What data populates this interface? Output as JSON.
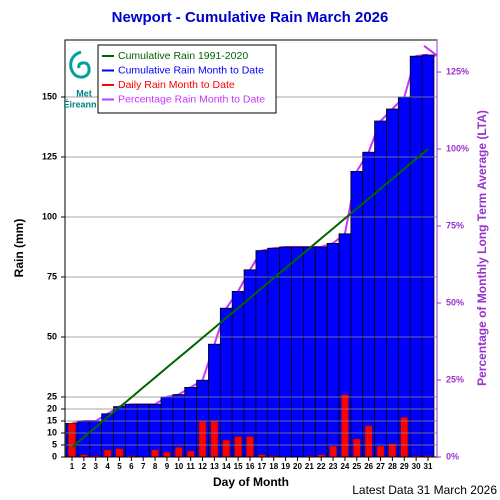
{
  "chart_data": {
    "type": "bar",
    "title": "Newport - Cumulative Rain March   2026",
    "x_label": "Day of Month",
    "y_label": "Rain (mm)",
    "y2_label": "Percentage  of Monthly Long Term Average (LTA)",
    "footer": "Latest Data 31 March 2026",
    "logo_text": [
      "Met",
      "Éireann"
    ],
    "categories": [
      "1",
      "2",
      "3",
      "4",
      "5",
      "6",
      "7",
      "8",
      "9",
      "10",
      "11",
      "12",
      "13",
      "14",
      "15",
      "16",
      "17",
      "18",
      "19",
      "20",
      "21",
      "22",
      "23",
      "24",
      "25",
      "26",
      "27",
      "28",
      "29",
      "30",
      "31"
    ],
    "series": [
      {
        "name": "Cumulative Rain 1991-2020",
        "color": "#006400",
        "kind": "line",
        "values": [
          4.1,
          8.3,
          12.4,
          16.6,
          20.7,
          24.8,
          29.0,
          33.1,
          37.3,
          41.4,
          45.5,
          49.7,
          53.8,
          58.0,
          62.1,
          66.2,
          70.4,
          74.5,
          78.7,
          82.8,
          86.9,
          91.1,
          95.2,
          99.4,
          103.5,
          107.6,
          111.8,
          115.9,
          120.1,
          124.2,
          128.3
        ]
      },
      {
        "name": "Cumulative Rain Month to Date",
        "color": "#0000ff",
        "kind": "bar",
        "values": [
          14,
          15,
          15,
          18,
          21,
          22,
          22,
          22,
          25,
          26,
          29,
          32,
          47,
          62,
          69,
          78,
          86,
          87,
          87.5,
          87.5,
          87.5,
          87.5,
          89,
          93,
          119,
          127,
          140,
          145,
          150,
          167,
          167.5
        ]
      },
      {
        "name": "Daily Rain Month to Date",
        "color": "#ff0000",
        "kind": "narrowbar",
        "values": [
          14,
          1,
          0.5,
          3,
          3.5,
          0.5,
          0,
          3,
          2,
          4,
          2.5,
          15,
          15,
          7,
          8.5,
          8.5,
          1,
          0.5,
          0,
          0,
          0.5,
          1,
          4.5,
          26,
          7.5,
          13,
          4.5,
          5.5,
          16.5,
          0.5,
          0.5
        ]
      },
      {
        "name": "Percentage Rain Month to Date",
        "color": "#cc33ff",
        "kind": "line",
        "axis": "y2",
        "values": [
          10.9,
          11.7,
          11.7,
          14.0,
          16.4,
          17.1,
          17.1,
          17.1,
          19.5,
          20.3,
          22.6,
          24.9,
          36.6,
          48.3,
          53.8,
          60.8,
          67.0,
          67.8,
          68.2,
          68.2,
          68.2,
          68.2,
          69.4,
          72.5,
          92.8,
          99.0,
          109.1,
          113.0,
          116.9,
          130.2,
          130.6
        ]
      }
    ],
    "ylim": [
      0,
      173.75
    ],
    "yticks": [
      0,
      5,
      10,
      15,
      20,
      25,
      50,
      75,
      100,
      125,
      150
    ],
    "y2lim": [
      0,
      135.4
    ],
    "y2ticks": [
      {
        "value": 0,
        "label": "0%"
      },
      {
        "value": 25,
        "label": "25%"
      },
      {
        "value": 50,
        "label": "50%"
      },
      {
        "value": 75,
        "label": "75%"
      },
      {
        "value": 100,
        "label": "100%"
      },
      {
        "value": 125,
        "label": "125%"
      }
    ],
    "grid": true,
    "legend": "top-left"
  }
}
